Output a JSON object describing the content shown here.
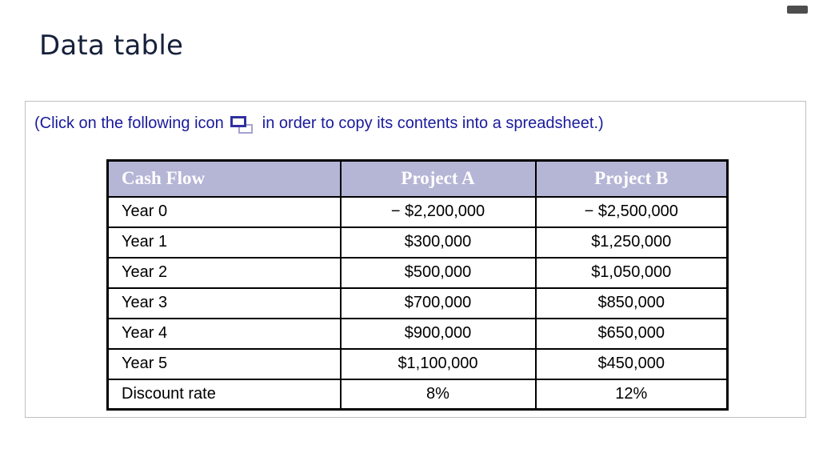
{
  "page": {
    "title": "Data table"
  },
  "window": {
    "pill": "collapse-pill"
  },
  "instruction": {
    "prefix": "(Click on the following icon",
    "suffix": "in order to copy its contents into a spreadsheet.)",
    "icon": "copy-icon (two overlapping rectangles)"
  },
  "table": {
    "columns": [
      "Cash Flow",
      "Project A",
      "Project B"
    ],
    "rows": [
      {
        "label": "Year 0",
        "a": "− $2,200,000",
        "b": "− $2,500,000"
      },
      {
        "label": "Year 1",
        "a": "$300,000",
        "b": "$1,250,000"
      },
      {
        "label": "Year 2",
        "a": "$500,000",
        "b": "$1,050,000"
      },
      {
        "label": "Year 3",
        "a": "$700,000",
        "b": "$850,000"
      },
      {
        "label": "Year 4",
        "a": "$900,000",
        "b": "$650,000"
      },
      {
        "label": "Year 5",
        "a": "$1,100,000",
        "b": "$450,000"
      },
      {
        "label": "Discount rate",
        "a": "8%",
        "b": "12%"
      }
    ]
  },
  "colors": {
    "title_text": "#16203a",
    "instruction_text": "#1a1a9c",
    "table_header_bg": "#b5b5d6",
    "table_header_text": "#ffffff",
    "table_border": "#000000",
    "panel_border": "#bfbfbf",
    "copy_icon_front": "#30309f",
    "copy_icon_back": "#a3a3d1",
    "window_pill": "#4d4d4d"
  }
}
